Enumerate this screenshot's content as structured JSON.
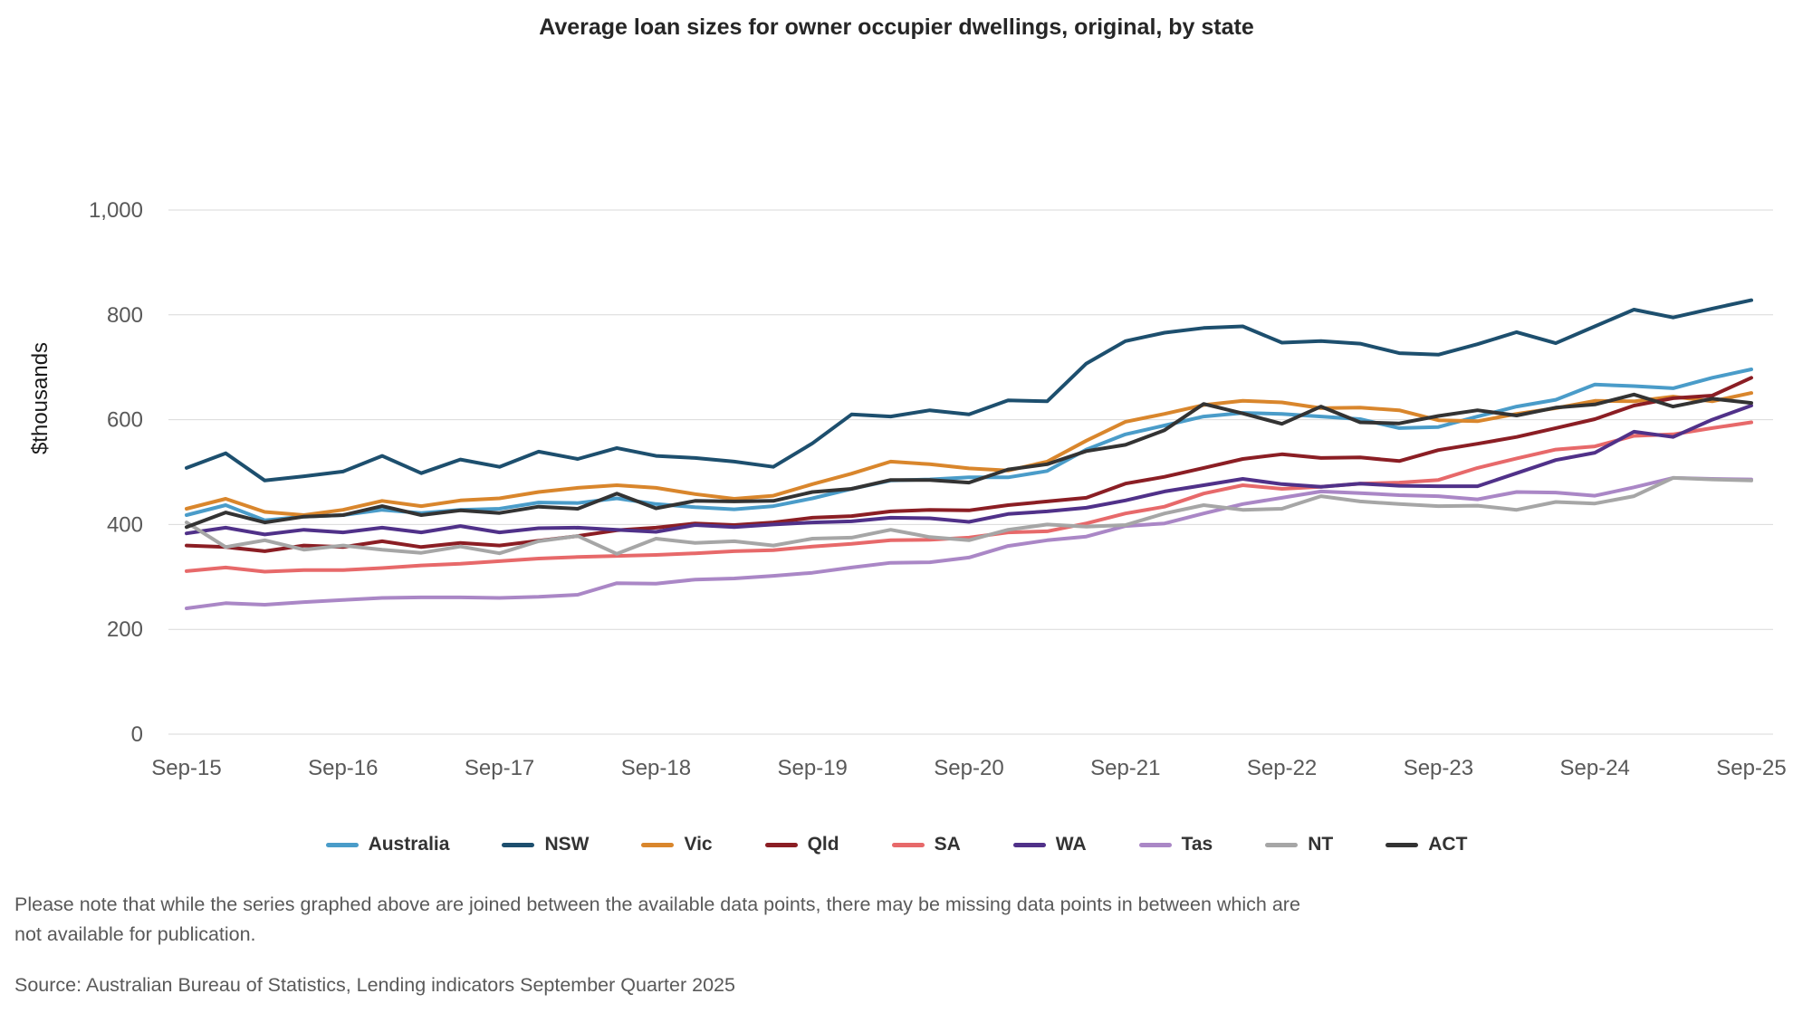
{
  "title": "Average loan sizes for owner occupier dwellings, original, by state",
  "notes": "Please note that while the series graphed above are joined between the available data points, there may be missing data points in between which are not available for publication.",
  "source": "Source: Australian Bureau of Statistics, Lending indicators September Quarter 2025",
  "chart_data": {
    "type": "line",
    "title": "Average loan sizes for owner occupier dwellings, original, by state",
    "xlabel": "",
    "ylabel": "$thousands",
    "ylim": [
      0,
      1000
    ],
    "grid": "horizontal",
    "legend_position": "bottom",
    "y_ticks": [
      {
        "value": 0,
        "label": "0"
      },
      {
        "value": 200,
        "label": "200"
      },
      {
        "value": 400,
        "label": "400"
      },
      {
        "value": 600,
        "label": "600"
      },
      {
        "value": 800,
        "label": "800"
      },
      {
        "value": 1000,
        "label": "1,000"
      }
    ],
    "x": [
      "Sep-15",
      "Dec-15",
      "Mar-16",
      "Jun-16",
      "Sep-16",
      "Dec-16",
      "Mar-17",
      "Jun-17",
      "Sep-17",
      "Dec-17",
      "Mar-18",
      "Jun-18",
      "Sep-18",
      "Dec-18",
      "Mar-19",
      "Jun-19",
      "Sep-19",
      "Dec-19",
      "Mar-20",
      "Jun-20",
      "Sep-20",
      "Dec-20",
      "Mar-21",
      "Jun-21",
      "Sep-21",
      "Dec-21",
      "Mar-22",
      "Jun-22",
      "Sep-22",
      "Dec-22",
      "Mar-23",
      "Jun-23",
      "Sep-23",
      "Dec-23",
      "Mar-24",
      "Jun-24",
      "Sep-24",
      "Dec-24",
      "Mar-25",
      "Jun-25",
      "Sep-25"
    ],
    "x_tick_every": 4,
    "x_axis_ticks_shown": [
      "Sep-15",
      "Sep-16",
      "Sep-17",
      "Sep-18",
      "Sep-19",
      "Sep-20",
      "Sep-21",
      "Sep-22",
      "Sep-23",
      "Sep-24",
      "Sep-25"
    ],
    "series": [
      {
        "name": "Australia",
        "color": "#4A9CC9",
        "values": [
          418,
          437,
          408,
          415,
          418,
          428,
          422,
          428,
          430,
          442,
          441,
          450,
          439,
          433,
          429,
          435,
          450,
          468,
          484,
          486,
          490,
          490,
          502,
          543,
          572,
          589,
          606,
          613,
          611,
          606,
          601,
          584,
          586,
          606,
          625,
          638,
          667,
          664,
          660,
          680,
          696
        ]
      },
      {
        "name": "NSW",
        "color": "#1D4F6E",
        "values": [
          508,
          536,
          484,
          492,
          501,
          531,
          498,
          524,
          510,
          539,
          525,
          546,
          531,
          527,
          520,
          510,
          555,
          610,
          606,
          618,
          610,
          637,
          635,
          707,
          750,
          766,
          775,
          778,
          747,
          750,
          745,
          727,
          724,
          744,
          767,
          746,
          778,
          810,
          795,
          812,
          828
        ]
      },
      {
        "name": "Vic",
        "color": "#D9862C",
        "values": [
          430,
          449,
          424,
          418,
          428,
          445,
          435,
          446,
          450,
          462,
          470,
          475,
          470,
          458,
          449,
          455,
          477,
          497,
          520,
          515,
          507,
          503,
          520,
          560,
          596,
          611,
          628,
          636,
          633,
          622,
          623,
          618,
          599,
          597,
          611,
          622,
          636,
          635,
          644,
          635,
          651
        ]
      },
      {
        "name": "Qld",
        "color": "#8B1E24",
        "values": [
          360,
          357,
          349,
          360,
          357,
          368,
          357,
          365,
          360,
          369,
          378,
          389,
          394,
          402,
          399,
          404,
          413,
          416,
          425,
          428,
          427,
          437,
          444,
          451,
          478,
          491,
          508,
          525,
          534,
          527,
          528,
          521,
          542,
          554,
          567,
          584,
          601,
          627,
          641,
          646,
          680
        ]
      },
      {
        "name": "SA",
        "color": "#E7696A",
        "values": [
          311,
          318,
          310,
          313,
          313,
          317,
          322,
          325,
          330,
          335,
          338,
          340,
          342,
          345,
          349,
          351,
          358,
          363,
          370,
          371,
          375,
          385,
          387,
          402,
          421,
          434,
          459,
          475,
          468,
          472,
          478,
          480,
          485,
          508,
          526,
          543,
          549,
          569,
          572,
          584,
          595
        ]
      },
      {
        "name": "WA",
        "color": "#503189",
        "values": [
          383,
          394,
          381,
          390,
          385,
          394,
          385,
          397,
          385,
          393,
          394,
          390,
          386,
          399,
          395,
          400,
          404,
          406,
          413,
          412,
          405,
          420,
          425,
          432,
          446,
          463,
          475,
          487,
          477,
          472,
          478,
          474,
          473,
          473,
          498,
          523,
          537,
          577,
          567,
          600,
          627
        ]
      },
      {
        "name": "Tas",
        "color": "#AA87C6",
        "values": [
          240,
          250,
          247,
          252,
          256,
          260,
          261,
          261,
          260,
          262,
          266,
          288,
          287,
          295,
          297,
          302,
          308,
          318,
          327,
          328,
          337,
          359,
          370,
          377,
          397,
          402,
          421,
          439,
          451,
          463,
          460,
          456,
          454,
          448,
          462,
          461,
          455,
          471,
          489,
          487,
          486
        ]
      },
      {
        "name": "NT",
        "color": "#A6A6A6",
        "values": [
          404,
          357,
          370,
          352,
          360,
          352,
          346,
          358,
          345,
          368,
          378,
          344,
          373,
          365,
          368,
          360,
          373,
          375,
          390,
          376,
          370,
          390,
          400,
          396,
          399,
          421,
          437,
          428,
          430,
          454,
          444,
          439,
          435,
          436,
          428,
          443,
          440,
          454,
          489,
          486,
          484
        ]
      },
      {
        "name": "ACT",
        "color": "#333333",
        "values": [
          395,
          423,
          404,
          415,
          418,
          435,
          418,
          427,
          422,
          434,
          430,
          459,
          431,
          445,
          444,
          445,
          462,
          468,
          485,
          485,
          480,
          505,
          515,
          540,
          552,
          580,
          630,
          612,
          592,
          625,
          595,
          593,
          607,
          618,
          608,
          623,
          629,
          648,
          625,
          640,
          632
        ]
      }
    ]
  }
}
